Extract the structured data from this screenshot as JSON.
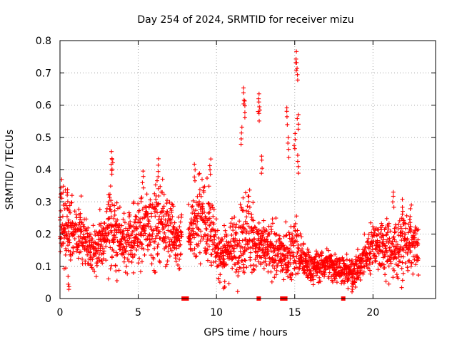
{
  "chart_data": {
    "type": "scatter",
    "title": "Day 254 of 2024, SRMTID for receiver mizu",
    "xlabel": "GPS time / hours",
    "ylabel": "SRMTID / TECUs",
    "xlim": [
      0,
      24
    ],
    "ylim": [
      0,
      0.8
    ],
    "xticks": [
      0,
      5,
      10,
      15,
      20
    ],
    "xtick_labels": [
      "0",
      "5",
      "10",
      "15",
      "20"
    ],
    "yticks": [
      0,
      0.1,
      0.2,
      0.3,
      0.4,
      0.5,
      0.6,
      0.7,
      0.8
    ],
    "ytick_labels": [
      "0",
      "0.1",
      "0.2",
      "0.3",
      "0.4",
      "0.5",
      "0.6",
      "0.7",
      "0.8"
    ],
    "grid": true,
    "marker": "+",
    "series": [
      {
        "name": "SRMTID",
        "color": "#ff0000",
        "profile_x": [
          0,
          0.3,
          0.6,
          1.0,
          1.5,
          2.0,
          2.5,
          3.0,
          3.3,
          3.6,
          4.0,
          4.5,
          5.0,
          5.5,
          6.0,
          6.5,
          7.0,
          7.5,
          8.0,
          8.5,
          9.0,
          9.5,
          10.0,
          10.5,
          11.0,
          11.5,
          12.0,
          12.5,
          13.0,
          13.5,
          14.0,
          14.5,
          15.0,
          15.5,
          16.0,
          16.5,
          17.0,
          17.5,
          18.0,
          18.5,
          19.0,
          19.5,
          20.0,
          20.5,
          21.0,
          21.5,
          22.0,
          22.5,
          22.9
        ],
        "profile_median": [
          0.2,
          0.22,
          0.21,
          0.2,
          0.19,
          0.15,
          0.16,
          0.2,
          0.22,
          0.2,
          0.18,
          0.18,
          0.2,
          0.22,
          0.23,
          0.24,
          0.22,
          0.18,
          0.18,
          0.22,
          0.26,
          0.24,
          0.14,
          0.14,
          0.16,
          0.18,
          0.22,
          0.18,
          0.15,
          0.15,
          0.14,
          0.13,
          0.17,
          0.12,
          0.1,
          0.1,
          0.11,
          0.1,
          0.09,
          0.08,
          0.09,
          0.13,
          0.17,
          0.16,
          0.15,
          0.15,
          0.18,
          0.17,
          0.15
        ],
        "profile_spread": [
          0.07,
          0.08,
          0.07,
          0.06,
          0.06,
          0.04,
          0.05,
          0.07,
          0.09,
          0.07,
          0.06,
          0.06,
          0.07,
          0.07,
          0.08,
          0.08,
          0.07,
          0.06,
          0.05,
          0.07,
          0.08,
          0.08,
          0.05,
          0.05,
          0.06,
          0.07,
          0.09,
          0.07,
          0.05,
          0.05,
          0.05,
          0.05,
          0.06,
          0.04,
          0.03,
          0.03,
          0.03,
          0.03,
          0.03,
          0.03,
          0.03,
          0.04,
          0.05,
          0.05,
          0.06,
          0.06,
          0.06,
          0.06,
          0.05
        ],
        "peaks": [
          {
            "x": 0.1,
            "y": 0.37
          },
          {
            "x": 0.5,
            "y": 0.34
          },
          {
            "x": 0.55,
            "y": 0.07
          },
          {
            "x": 3.3,
            "y": 0.46
          },
          {
            "x": 3.35,
            "y": 0.44
          },
          {
            "x": 5.3,
            "y": 0.4
          },
          {
            "x": 6.3,
            "y": 0.44
          },
          {
            "x": 8.6,
            "y": 0.42
          },
          {
            "x": 9.6,
            "y": 0.44
          },
          {
            "x": 10.5,
            "y": 0.06
          },
          {
            "x": 11.6,
            "y": 0.54
          },
          {
            "x": 11.75,
            "y": 0.66
          },
          {
            "x": 11.8,
            "y": 0.62
          },
          {
            "x": 12.7,
            "y": 0.64
          },
          {
            "x": 12.75,
            "y": 0.61
          },
          {
            "x": 12.9,
            "y": 0.45
          },
          {
            "x": 14.5,
            "y": 0.6
          },
          {
            "x": 14.6,
            "y": 0.5
          },
          {
            "x": 15.0,
            "y": 0.52
          },
          {
            "x": 15.1,
            "y": 0.77
          },
          {
            "x": 15.15,
            "y": 0.74
          },
          {
            "x": 15.2,
            "y": 0.58
          },
          {
            "x": 15.2,
            "y": 0.45
          },
          {
            "x": 21.3,
            "y": 0.34
          },
          {
            "x": 21.9,
            "y": 0.31
          },
          {
            "x": 22.4,
            "y": 0.28
          },
          {
            "x": 18.7,
            "y": 0.05
          }
        ]
      }
    ],
    "gap_markers_x": [
      7.9,
      8.0,
      8.1,
      12.7,
      14.2,
      14.3,
      14.4,
      18.1
    ]
  }
}
